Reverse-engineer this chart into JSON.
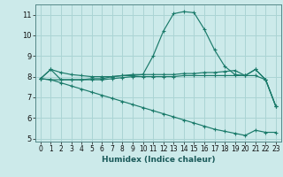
{
  "xlabel": "Humidex (Indice chaleur)",
  "ylabel": "",
  "bg_color": "#cceaea",
  "grid_color": "#aad4d4",
  "line_color": "#1a7a6a",
  "xlim": [
    -0.5,
    23.5
  ],
  "ylim": [
    4.85,
    11.5
  ],
  "yticks": [
    5,
    6,
    7,
    8,
    9,
    10,
    11
  ],
  "xticks": [
    0,
    1,
    2,
    3,
    4,
    5,
    6,
    7,
    8,
    9,
    10,
    11,
    12,
    13,
    14,
    15,
    16,
    17,
    18,
    19,
    20,
    21,
    22,
    23
  ],
  "series": [
    {
      "x": [
        0,
        1,
        2,
        3,
        4,
        5,
        6,
        7,
        8,
        9,
        10,
        11,
        12,
        13,
        14,
        15,
        16,
        17,
        18,
        19,
        20,
        21,
        22,
        23
      ],
      "y": [
        7.9,
        8.35,
        7.85,
        7.85,
        7.85,
        7.9,
        7.9,
        8.0,
        8.05,
        8.1,
        8.1,
        9.0,
        10.2,
        11.05,
        11.15,
        11.1,
        10.3,
        9.3,
        8.5,
        8.1,
        8.05,
        8.35,
        7.85,
        6.55
      ],
      "marker": "+"
    },
    {
      "x": [
        0,
        1,
        2,
        3,
        4,
        5,
        6,
        7,
        8,
        9,
        10,
        11,
        12,
        13,
        14,
        15,
        16,
        17,
        18,
        19,
        20,
        21,
        22,
        23
      ],
      "y": [
        7.9,
        8.35,
        8.2,
        8.1,
        8.05,
        8.0,
        8.0,
        8.0,
        8.05,
        8.05,
        8.1,
        8.1,
        8.1,
        8.1,
        8.15,
        8.15,
        8.2,
        8.2,
        8.25,
        8.3,
        8.05,
        8.35,
        7.85,
        6.55
      ],
      "marker": "+"
    },
    {
      "x": [
        0,
        1,
        2,
        3,
        4,
        5,
        6,
        7,
        8,
        9,
        10,
        11,
        12,
        13,
        14,
        15,
        16,
        17,
        18,
        19,
        20,
        21,
        22,
        23
      ],
      "y": [
        7.9,
        7.85,
        7.85,
        7.85,
        7.85,
        7.85,
        7.85,
        7.9,
        7.95,
        8.0,
        8.0,
        8.0,
        8.0,
        8.0,
        8.05,
        8.05,
        8.05,
        8.05,
        8.05,
        8.05,
        8.05,
        8.05,
        7.85,
        6.55
      ],
      "marker": "+"
    },
    {
      "x": [
        0,
        1,
        2,
        3,
        4,
        5,
        6,
        7,
        8,
        9,
        10,
        11,
        12,
        13,
        14,
        15,
        16,
        17,
        18,
        19,
        20,
        21,
        22,
        23
      ],
      "y": [
        7.9,
        7.85,
        7.7,
        7.55,
        7.4,
        7.25,
        7.1,
        6.95,
        6.8,
        6.65,
        6.5,
        6.35,
        6.2,
        6.05,
        5.9,
        5.75,
        5.6,
        5.45,
        5.35,
        5.25,
        5.15,
        5.4,
        5.3,
        5.3
      ],
      "marker": "+"
    }
  ]
}
